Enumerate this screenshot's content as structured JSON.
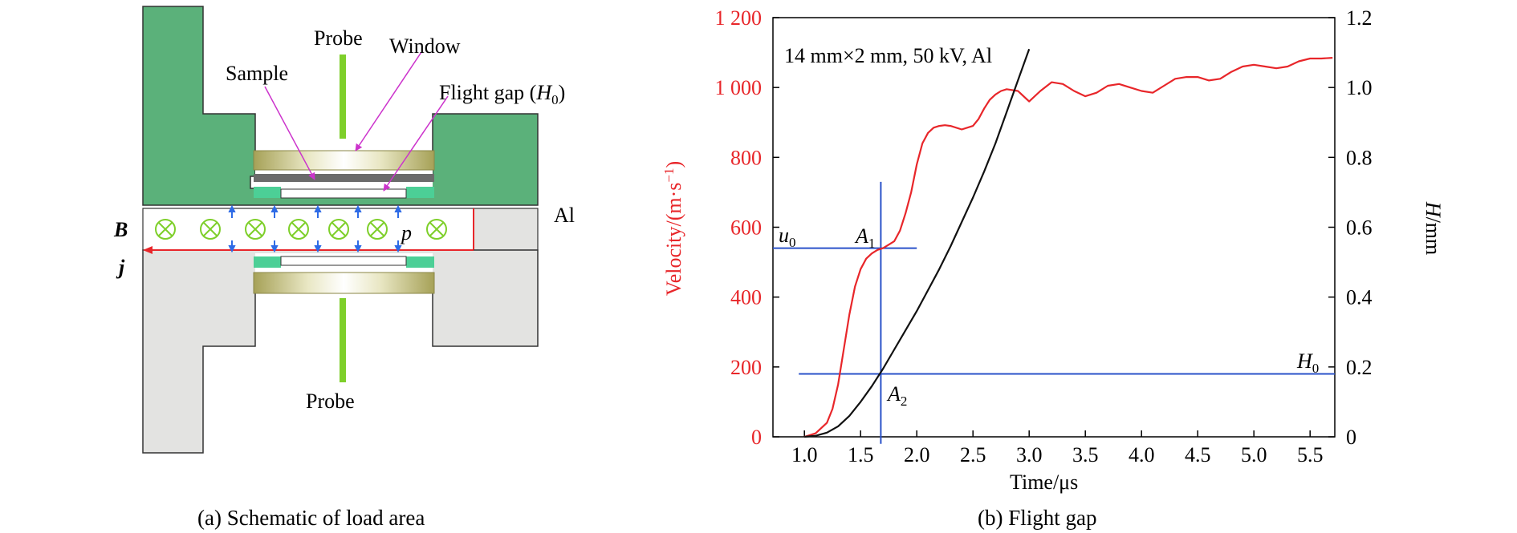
{
  "figure_a": {
    "caption": "(a) Schematic of load area",
    "labels": {
      "probe_top": "Probe",
      "window": "Window",
      "sample": "Sample",
      "flight_gap": "Flight gap (",
      "flight_gap_sym": "H",
      "flight_gap_sub": "0",
      "flight_gap_close": ")",
      "al": "Al",
      "b": "B",
      "j": "j",
      "p": "p",
      "probe_bottom": "Probe"
    },
    "colors": {
      "green": "#5bb17a",
      "gray": "#e3e3e1",
      "olive": "#a8a35a",
      "teal": "#4ccf96",
      "arrow": "#2e6be6",
      "current": "#e8262a"
    }
  },
  "figure_b": {
    "caption": "(b) Flight gap",
    "annotation": "14 mm×2 mm, 50 kV, Al",
    "point_labels": {
      "a1": "A",
      "a1_sub": "1",
      "a2": "A",
      "a2_sub": "2",
      "u0": "u",
      "u0_sub": "0",
      "h0": "H",
      "h0_sub": "0"
    },
    "xlabel": "Time/μs",
    "ylabel_left": "Velocity/(m·s",
    "ylabel_left_sup": "−1",
    "ylabel_left_close": ")",
    "ylabel_right_sym": "H",
    "ylabel_right_unit": "/mm",
    "x_ticks": [
      "1.0",
      "1.5",
      "2.0",
      "2.5",
      "3.0",
      "3.5",
      "4.0",
      "4.5",
      "5.0",
      "5.5"
    ],
    "y_left_ticks": [
      "0",
      "200",
      "400",
      "600",
      "800",
      "1 000",
      "1 200"
    ],
    "y_right_ticks": [
      "0",
      "0.2",
      "0.4",
      "0.6",
      "0.8",
      "1.0",
      "1.2"
    ]
  },
  "chart_data": {
    "type": "line",
    "xlabel": "Time/μs",
    "ylabel": "Velocity/(m·s−1)",
    "ylabel_right": "H/mm",
    "xlim": [
      0.72,
      5.72
    ],
    "ylim": [
      0,
      1200
    ],
    "ylim_right": [
      0,
      1.2
    ],
    "series": [
      {
        "axis": "left",
        "color": "#e8262a",
        "x": [
          1.0,
          1.1,
          1.2,
          1.25,
          1.3,
          1.35,
          1.4,
          1.45,
          1.5,
          1.55,
          1.6,
          1.65,
          1.7,
          1.75,
          1.8,
          1.85,
          1.9,
          1.95,
          2.0,
          2.05,
          2.1,
          2.15,
          2.2,
          2.25,
          2.3,
          2.4,
          2.5,
          2.55,
          2.6,
          2.65,
          2.7,
          2.75,
          2.8,
          2.9,
          3.0,
          3.1,
          3.2,
          3.3,
          3.4,
          3.5,
          3.6,
          3.7,
          3.8,
          3.9,
          4.0,
          4.1,
          4.2,
          4.3,
          4.4,
          4.5,
          4.6,
          4.7,
          4.8,
          4.9,
          5.0,
          5.1,
          5.2,
          5.3,
          5.4,
          5.5,
          5.6,
          5.7
        ],
        "y": [
          0,
          10,
          40,
          80,
          150,
          250,
          350,
          430,
          480,
          510,
          525,
          535,
          540,
          550,
          560,
          590,
          640,
          700,
          780,
          840,
          870,
          885,
          890,
          892,
          890,
          880,
          890,
          910,
          940,
          965,
          980,
          990,
          995,
          990,
          960,
          990,
          1015,
          1010,
          990,
          975,
          985,
          1005,
          1010,
          1000,
          990,
          985,
          1005,
          1025,
          1030,
          1030,
          1020,
          1025,
          1045,
          1060,
          1065,
          1060,
          1055,
          1060,
          1075,
          1083,
          1083,
          1085
        ]
      },
      {
        "axis": "right",
        "color": "#111111",
        "x": [
          1.0,
          1.1,
          1.2,
          1.3,
          1.4,
          1.5,
          1.6,
          1.7,
          1.8,
          1.9,
          2.0,
          2.1,
          2.2,
          2.3,
          2.4,
          2.5,
          2.6,
          2.7,
          2.8,
          2.9,
          3.0
        ],
        "y": [
          0,
          0.003,
          0.012,
          0.03,
          0.06,
          0.1,
          0.145,
          0.195,
          0.25,
          0.305,
          0.36,
          0.42,
          0.48,
          0.545,
          0.615,
          0.685,
          0.76,
          0.84,
          0.93,
          1.02,
          1.11
        ]
      }
    ],
    "annotations": [
      "14 mm×2 mm, 50 kV, Al"
    ],
    "reference_lines": {
      "u0": 540,
      "H0_mm": 0.18,
      "t_A": 1.68
    }
  }
}
